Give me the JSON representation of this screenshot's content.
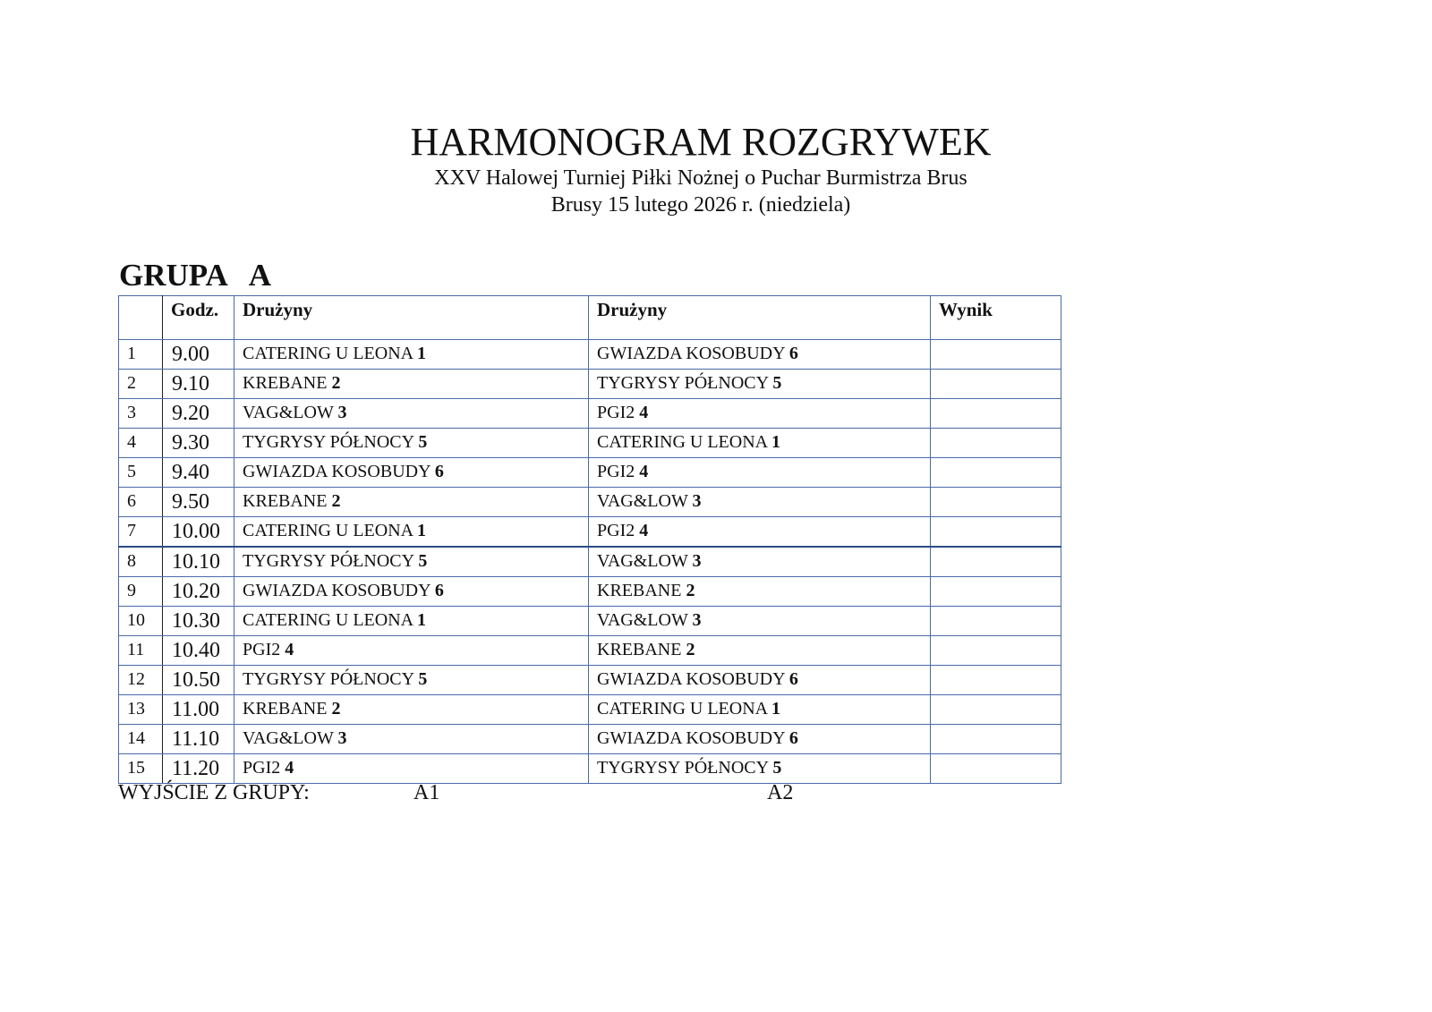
{
  "header": {
    "title": "HARMONOGRAM ROZGRYWEK",
    "subtitle": "XXV Halowej Turniej Piłki Nożnej o Puchar Burmistrza Brus",
    "date_line": "Brusy 15 lutego 2026 r. (niedziela)"
  },
  "group_title": "GRUPA   A",
  "table": {
    "columns": [
      "",
      "Godz.",
      "Drużyny",
      "Drużyny",
      "Wynik"
    ],
    "rows": [
      {
        "no": "1",
        "time": "9.00",
        "home": "CATERING U LEONA",
        "home_no": "1",
        "away": "GWIAZDA KOSOBUDY",
        "away_no": "6",
        "result": ""
      },
      {
        "no": "2",
        "time": "9.10",
        "home": "KREBANE",
        "home_no": "2",
        "away": "TYGRYSY PÓŁNOCY",
        "away_no": "5",
        "result": ""
      },
      {
        "no": "3",
        "time": "9.20",
        "home": "VAG&LOW",
        "home_no": "3",
        "away": "PGI2",
        "away_no": "4",
        "result": ""
      },
      {
        "no": "4",
        "time": "9.30",
        "home": "TYGRYSY PÓŁNOCY",
        "home_no": "5",
        "away": "CATERING U LEONA",
        "away_no": "1",
        "result": ""
      },
      {
        "no": "5",
        "time": "9.40",
        "home": "GWIAZDA KOSOBUDY",
        "home_no": "6",
        "away": "PGI2",
        "away_no": "4",
        "result": ""
      },
      {
        "no": "6",
        "time": "9.50",
        "home": "KREBANE",
        "home_no": "2",
        "away": "VAG&LOW",
        "away_no": "3",
        "result": ""
      },
      {
        "no": "7",
        "time": "10.00",
        "home": "CATERING U LEONA",
        "home_no": "1",
        "away": "PGI2",
        "away_no": "4",
        "result": ""
      },
      {
        "no": "8",
        "time": "10.10",
        "home": "TYGRYSY PÓŁNOCY",
        "home_no": "5",
        "away": "VAG&LOW",
        "away_no": "3",
        "result": ""
      },
      {
        "no": "9",
        "time": "10.20",
        "home": "GWIAZDA KOSOBUDY",
        "home_no": "6",
        "away": "KREBANE",
        "away_no": "2",
        "result": ""
      },
      {
        "no": "10",
        "time": "10.30",
        "home": "CATERING U LEONA",
        "home_no": "1",
        "away": "VAG&LOW",
        "away_no": "3",
        "result": ""
      },
      {
        "no": "11",
        "time": "10.40",
        "home": "PGI2",
        "home_no": "4",
        "away": "KREBANE",
        "away_no": "2",
        "result": ""
      },
      {
        "no": "12",
        "time": "10.50",
        "home": "TYGRYSY PÓŁNOCY",
        "home_no": "5",
        "away": "GWIAZDA KOSOBUDY",
        "away_no": "6",
        "result": ""
      },
      {
        "no": "13",
        "time": "11.00",
        "home": "KREBANE",
        "home_no": "2",
        "away": "CATERING U LEONA",
        "away_no": "1",
        "result": ""
      },
      {
        "no": "14",
        "time": "11.10",
        "home": "VAG&LOW",
        "home_no": "3",
        "away": "GWIAZDA KOSOBUDY",
        "away_no": "6",
        "result": ""
      },
      {
        "no": "15",
        "time": "11.20",
        "home": "PGI2",
        "home_no": "4",
        "away": "TYGRYSY PÓŁNOCY",
        "away_no": "5",
        "result": ""
      }
    ]
  },
  "footer": {
    "label": "WYJŚCIE Z GRUPY:",
    "first": "A1",
    "second": "A2"
  }
}
